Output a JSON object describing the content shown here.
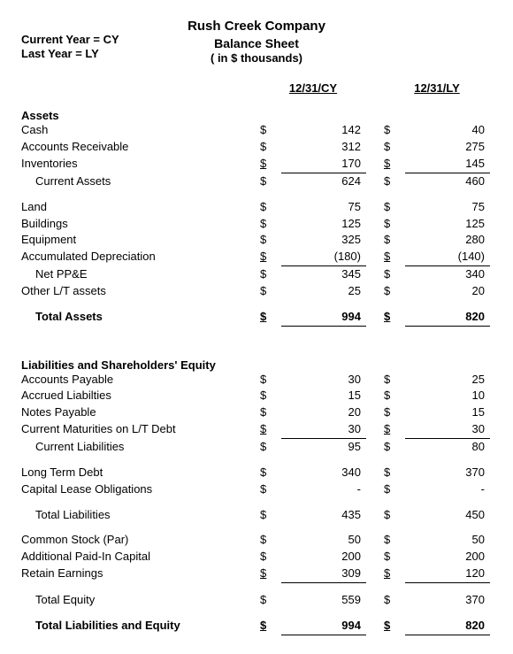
{
  "header": {
    "company": "Rush Creek Company",
    "title": "Balance Sheet",
    "units": "( in $ thousands)"
  },
  "legend": {
    "line1": "Current Year = CY",
    "line2": "Last Year = LY"
  },
  "columns": {
    "cy": "12/31/CY",
    "ly": "12/31/LY"
  },
  "sections": {
    "assets": "Assets",
    "liab": "Liabilities and Shareholders' Equity"
  },
  "rows": {
    "cash": {
      "label": "Cash",
      "cy": "142",
      "ly": "40"
    },
    "ar": {
      "label": "Accounts Receivable",
      "cy": "312",
      "ly": "275"
    },
    "inv": {
      "label": "Inventories",
      "cy": "170",
      "ly": "145"
    },
    "ca": {
      "label": "Current Assets",
      "cy": "624",
      "ly": "460"
    },
    "land": {
      "label": "Land",
      "cy": "75",
      "ly": "75"
    },
    "bldg": {
      "label": "Buildings",
      "cy": "125",
      "ly": "125"
    },
    "equip": {
      "label": "Equipment",
      "cy": "325",
      "ly": "280"
    },
    "accdep": {
      "label": "Accumulated Depreciation",
      "cy": "(180)",
      "ly": "(140)"
    },
    "netppe": {
      "label": "Net PP&E",
      "cy": "345",
      "ly": "340"
    },
    "otherlt": {
      "label": "Other L/T assets",
      "cy": "25",
      "ly": "20"
    },
    "totassets": {
      "label": "Total Assets",
      "cy": "994",
      "ly": "820"
    },
    "ap": {
      "label": "Accounts Payable",
      "cy": "30",
      "ly": "25"
    },
    "accliab": {
      "label": "Accrued Liabilties",
      "cy": "15",
      "ly": "10"
    },
    "np": {
      "label": "Notes Payable",
      "cy": "20",
      "ly": "15"
    },
    "cmlt": {
      "label": "Current Maturities on L/T Debt",
      "cy": "30",
      "ly": "30"
    },
    "cl": {
      "label": "Current Liabilities",
      "cy": "95",
      "ly": "80"
    },
    "ltd": {
      "label": "Long Term Debt",
      "cy": "340",
      "ly": "370"
    },
    "clo": {
      "label": "Capital Lease Obligations",
      "cy": "-",
      "ly": "-"
    },
    "totliab": {
      "label": "Total Liabilities",
      "cy": "435",
      "ly": "450"
    },
    "cstock": {
      "label": "Common Stock (Par)",
      "cy": "50",
      "ly": "50"
    },
    "apic": {
      "label": "Additional Paid-In Capital",
      "cy": "200",
      "ly": "200"
    },
    "re": {
      "label": "Retain Earnings",
      "cy": "309",
      "ly": "120"
    },
    "toteq": {
      "label": "Total Equity",
      "cy": "559",
      "ly": "370"
    },
    "totle": {
      "label": "Total Liabilities and Equity",
      "cy": "994",
      "ly": "820"
    }
  },
  "sym": "$"
}
